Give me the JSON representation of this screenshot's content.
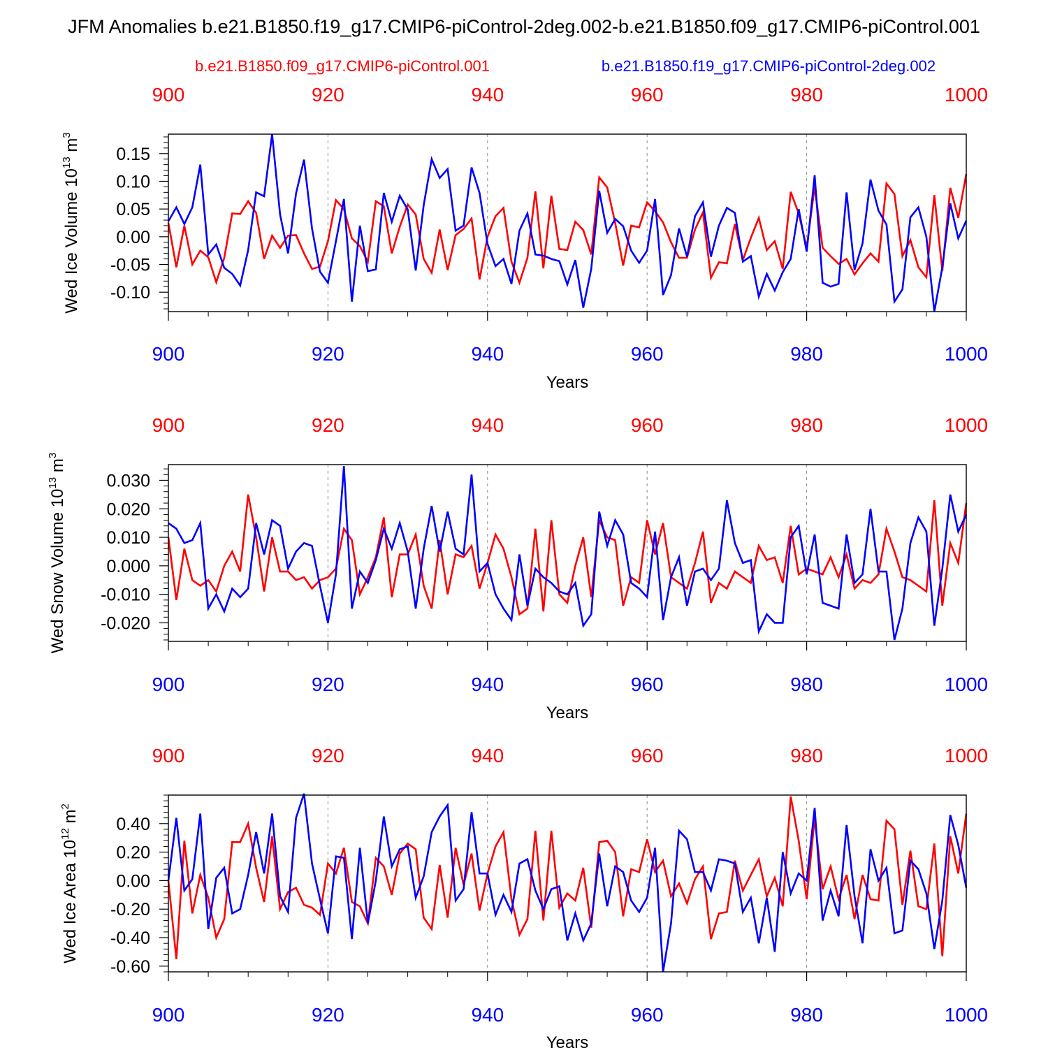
{
  "title": "JFM Anomalies b.e21.B1850.f19_g17.CMIP6-piControl-2deg.002-b.e21.B1850.f09_g17.CMIP6-piControl.001",
  "legend": {
    "red": "b.e21.B1850.f09_g17.CMIP6-piControl.001",
    "blue": "b.e21.B1850.f19_g17.CMIP6-piControl-2deg.002"
  },
  "colors": {
    "red": "#ff0000",
    "blue": "#0000ff",
    "axis": "#000000"
  },
  "chart_data": [
    {
      "type": "line",
      "title": "",
      "xlabel": "Years",
      "ylabel": "Wed Ice Volume 10^13 m^3",
      "ylabel_main": "Wed Ice Volume 10",
      "ylabel_exp1": "13",
      "ylabel_unit": " m",
      "ylabel_exp2": "3",
      "xlim": [
        900,
        1000
      ],
      "ylim": [
        -0.135,
        0.185
      ],
      "x_ticks": [
        "900",
        "920",
        "940",
        "960",
        "980",
        "1000"
      ],
      "y_ticks": [
        "-0.10",
        "-0.05",
        "0.00",
        "0.05",
        "0.10",
        "0.15"
      ],
      "series": [
        {
          "name": "b.e21.B1850.f09_g17.CMIP6-piControl.001",
          "color": "red",
          "x_start": 900,
          "values": [
            0.025,
            -0.055,
            0.02,
            -0.05,
            -0.025,
            -0.037,
            -0.082,
            -0.038,
            0.042,
            0.041,
            0.064,
            0.043,
            -0.04,
            0.002,
            -0.02,
            0.002,
            0.003,
            -0.03,
            -0.058,
            -0.054,
            -0.008,
            0.066,
            0.05,
            -0.003,
            -0.017,
            -0.045,
            0.064,
            0.055,
            -0.03,
            0.018,
            0.058,
            0.04,
            -0.04,
            -0.065,
            0.013,
            -0.06,
            0.003,
            0.014,
            0.033,
            -0.077,
            0.0,
            0.037,
            0.052,
            -0.045,
            -0.083,
            -0.038,
            0.082,
            -0.057,
            0.074,
            -0.022,
            -0.024,
            0.027,
            0.012,
            -0.032,
            0.107,
            0.089,
            0.025,
            -0.052,
            0.02,
            0.017,
            0.062,
            0.046,
            0.026,
            -0.01,
            -0.038,
            -0.038,
            0.013,
            0.044,
            -0.074,
            -0.046,
            -0.048,
            0.023,
            -0.042,
            -0.002,
            0.034,
            -0.024,
            -0.008,
            -0.058,
            0.081,
            0.042,
            -0.02,
            0.09,
            -0.02,
            -0.035,
            -0.049,
            -0.04,
            -0.068,
            -0.048,
            -0.03,
            -0.045,
            0.096,
            0.077,
            -0.035,
            -0.006,
            -0.055,
            -0.073,
            0.075,
            -0.062,
            0.088,
            0.034,
            0.113
          ]
        },
        {
          "name": "b.e21.B1850.f19_g17.CMIP6-piControl-2deg.002",
          "color": "blue",
          "x_start": 900,
          "values": [
            0.028,
            0.053,
            0.023,
            0.053,
            0.13,
            -0.032,
            -0.014,
            -0.056,
            -0.067,
            -0.088,
            -0.024,
            0.08,
            0.073,
            0.185,
            0.04,
            -0.03,
            0.078,
            0.139,
            0.015,
            -0.063,
            -0.083,
            -0.008,
            0.068,
            -0.117,
            0.02,
            -0.062,
            -0.059,
            0.079,
            0.027,
            0.074,
            0.049,
            -0.061,
            0.057,
            0.14,
            0.106,
            0.122,
            0.011,
            0.02,
            0.125,
            0.079,
            -0.013,
            -0.053,
            -0.04,
            -0.085,
            0.011,
            0.042,
            -0.032,
            -0.034,
            -0.04,
            -0.044,
            -0.086,
            -0.042,
            -0.128,
            -0.058,
            0.083,
            0.007,
            0.032,
            0.019,
            -0.025,
            -0.047,
            -0.025,
            0.068,
            -0.105,
            -0.069,
            0.015,
            -0.036,
            0.037,
            0.062,
            -0.036,
            0.02,
            0.052,
            0.043,
            -0.045,
            -0.035,
            -0.108,
            -0.067,
            -0.097,
            -0.064,
            -0.04,
            0.05,
            -0.027,
            0.111,
            -0.083,
            -0.09,
            -0.085,
            0.08,
            -0.06,
            -0.012,
            0.103,
            0.047,
            0.022,
            -0.117,
            -0.095,
            0.035,
            0.053,
            0.0,
            -0.135,
            -0.055,
            0.06,
            -0.003,
            0.029
          ]
        }
      ]
    },
    {
      "type": "line",
      "title": "",
      "xlabel": "Years",
      "ylabel": "Wed Snow Volume 10^13 m^3",
      "ylabel_main": "Wed Snow Volume 10",
      "ylabel_exp1": "13",
      "ylabel_unit": " m",
      "ylabel_exp2": "3",
      "xlim": [
        900,
        1000
      ],
      "ylim": [
        -0.0265,
        0.0355
      ],
      "x_ticks": [
        "900",
        "920",
        "940",
        "960",
        "980",
        "1000"
      ],
      "y_ticks": [
        "-0.020",
        "-0.010",
        "0.000",
        "0.010",
        "0.020",
        "0.030"
      ],
      "series": [
        {
          "name": "b.e21.B1850.f09_g17.CMIP6-piControl.001",
          "color": "red",
          "x_start": 900,
          "values": [
            0.01,
            -0.012,
            0.006,
            -0.005,
            -0.007,
            -0.005,
            -0.009,
            0.0,
            0.005,
            -0.002,
            0.025,
            0.01,
            -0.009,
            0.01,
            -0.002,
            -0.002,
            -0.005,
            -0.004,
            -0.008,
            -0.005,
            -0.004,
            -0.001,
            0.013,
            0.009,
            -0.01,
            -0.004,
            0.003,
            0.017,
            -0.011,
            0.004,
            0.004,
            0.011,
            -0.007,
            -0.015,
            0.009,
            -0.01,
            0.004,
            0.003,
            0.007,
            -0.008,
            0.001,
            0.011,
            0.006,
            -0.004,
            -0.017,
            -0.015,
            0.013,
            -0.016,
            0.016,
            -0.01,
            -0.013,
            0.0,
            0.01,
            -0.011,
            0.016,
            0.01,
            0.009,
            -0.014,
            -0.004,
            -0.006,
            0.016,
            0.004,
            0.015,
            -0.004,
            -0.006,
            -0.008,
            0.001,
            0.012,
            -0.013,
            -0.006,
            -0.008,
            -0.002,
            -0.004,
            -0.006,
            0.007,
            0.002,
            0.003,
            -0.006,
            0.014,
            -0.003,
            -0.001,
            -0.002,
            -0.003,
            0.003,
            -0.004,
            0.004,
            -0.008,
            -0.005,
            -0.006,
            -0.003,
            0.013,
            0.005,
            -0.004,
            -0.005,
            -0.007,
            -0.009,
            0.023,
            -0.014,
            0.008,
            0.001,
            0.022
          ]
        },
        {
          "name": "b.e21.B1850.f19_g17.CMIP6-piControl-2deg.002",
          "color": "blue",
          "x_start": 900,
          "values": [
            0.015,
            0.013,
            0.008,
            0.009,
            0.015,
            -0.015,
            -0.01,
            -0.016,
            -0.008,
            -0.011,
            -0.008,
            0.015,
            0.004,
            0.016,
            0.014,
            -0.001,
            0.005,
            0.008,
            0.007,
            -0.007,
            -0.02,
            -0.003,
            0.035,
            -0.015,
            -0.002,
            -0.006,
            0.002,
            0.013,
            0.006,
            0.015,
            0.005,
            -0.015,
            0.006,
            0.021,
            0.005,
            0.019,
            0.006,
            0.004,
            0.032,
            -0.002,
            0.001,
            -0.01,
            -0.015,
            -0.019,
            0.004,
            -0.014,
            -0.001,
            -0.004,
            -0.006,
            -0.009,
            -0.01,
            -0.006,
            -0.021,
            -0.017,
            0.019,
            0.007,
            0.016,
            0.011,
            -0.006,
            -0.008,
            -0.011,
            0.012,
            -0.019,
            -0.004,
            0.003,
            -0.014,
            -0.002,
            -0.001,
            -0.005,
            -0.001,
            0.023,
            0.008,
            0.001,
            0.002,
            -0.023,
            -0.017,
            -0.02,
            -0.02,
            0.01,
            0.014,
            -0.003,
            0.011,
            -0.013,
            -0.014,
            -0.015,
            0.011,
            -0.006,
            -0.003,
            0.02,
            -0.002,
            -0.002,
            -0.026,
            -0.015,
            0.008,
            0.017,
            0.012,
            -0.021,
            -0.001,
            0.025,
            0.012,
            0.018
          ]
        }
      ]
    },
    {
      "type": "line",
      "title": "",
      "xlabel": "Years",
      "ylabel": "Wed Ice Area 10^12 m^2",
      "ylabel_main": "Wed Ice Area 10",
      "ylabel_exp1": "12",
      "ylabel_unit": " m",
      "ylabel_exp2": "2",
      "xlim": [
        900,
        1000
      ],
      "ylim": [
        -0.64,
        0.6
      ],
      "x_ticks": [
        "900",
        "920",
        "940",
        "960",
        "980",
        "1000"
      ],
      "y_ticks": [
        "-0.60",
        "-0.40",
        "-0.20",
        "0.00",
        "0.20",
        "0.40"
      ],
      "series": [
        {
          "name": "b.e21.B1850.f09_g17.CMIP6-piControl.001",
          "color": "red",
          "x_start": 900,
          "values": [
            0.0,
            -0.55,
            0.28,
            -0.23,
            0.04,
            -0.12,
            -0.4,
            -0.27,
            0.27,
            0.27,
            0.4,
            0.09,
            -0.15,
            0.31,
            -0.2,
            -0.08,
            -0.05,
            -0.17,
            -0.19,
            -0.24,
            0.12,
            0.05,
            0.23,
            -0.15,
            -0.18,
            -0.3,
            0.16,
            0.1,
            -0.1,
            0.19,
            0.26,
            0.22,
            -0.26,
            -0.34,
            0.11,
            -0.26,
            0.23,
            -0.03,
            0.19,
            -0.21,
            0.05,
            0.24,
            0.34,
            -0.13,
            -0.38,
            -0.27,
            0.35,
            -0.28,
            0.35,
            -0.19,
            -0.09,
            -0.14,
            0.09,
            -0.33,
            0.27,
            0.28,
            0.2,
            -0.25,
            0.08,
            0.06,
            0.29,
            0.06,
            0.14,
            -0.11,
            -0.02,
            -0.16,
            0.01,
            0.1,
            -0.41,
            -0.23,
            -0.22,
            0.14,
            -0.07,
            0.04,
            0.15,
            -0.11,
            0.02,
            -0.18,
            0.59,
            0.28,
            -0.13,
            0.44,
            -0.06,
            0.1,
            -0.13,
            0.04,
            -0.27,
            0.04,
            -0.13,
            -0.14,
            0.42,
            0.36,
            -0.17,
            0.21,
            -0.18,
            -0.2,
            0.26,
            -0.53,
            0.31,
            0.05,
            0.47
          ]
        },
        {
          "name": "b.e21.B1850.f19_g17.CMIP6-piControl-2deg.002",
          "color": "blue",
          "x_start": 900,
          "values": [
            0.0,
            0.44,
            -0.07,
            0.01,
            0.47,
            -0.34,
            0.02,
            0.09,
            -0.23,
            -0.2,
            0.04,
            0.34,
            0.05,
            0.47,
            -0.11,
            -0.22,
            0.44,
            0.61,
            0.12,
            -0.13,
            -0.37,
            0.17,
            0.16,
            -0.41,
            0.23,
            -0.3,
            0.0,
            0.45,
            0.1,
            0.22,
            0.24,
            -0.12,
            0.03,
            0.34,
            0.45,
            0.53,
            -0.14,
            -0.06,
            0.48,
            0.05,
            0.05,
            -0.24,
            -0.1,
            -0.22,
            0.12,
            0.15,
            -0.07,
            -0.2,
            -0.06,
            -0.04,
            -0.42,
            -0.23,
            -0.42,
            -0.3,
            0.19,
            -0.18,
            0.1,
            0.06,
            -0.14,
            -0.22,
            -0.12,
            0.23,
            -0.64,
            -0.3,
            0.35,
            0.29,
            0.06,
            0.06,
            -0.07,
            0.15,
            0.14,
            0.12,
            -0.22,
            -0.12,
            -0.44,
            -0.12,
            -0.5,
            0.2,
            -0.09,
            0.05,
            0.0,
            0.51,
            -0.28,
            -0.07,
            -0.25,
            0.39,
            -0.11,
            -0.44,
            0.22,
            0.0,
            0.09,
            -0.37,
            -0.35,
            0.14,
            0.08,
            -0.09,
            -0.48,
            -0.14,
            0.46,
            0.25,
            -0.05
          ]
        }
      ]
    }
  ]
}
